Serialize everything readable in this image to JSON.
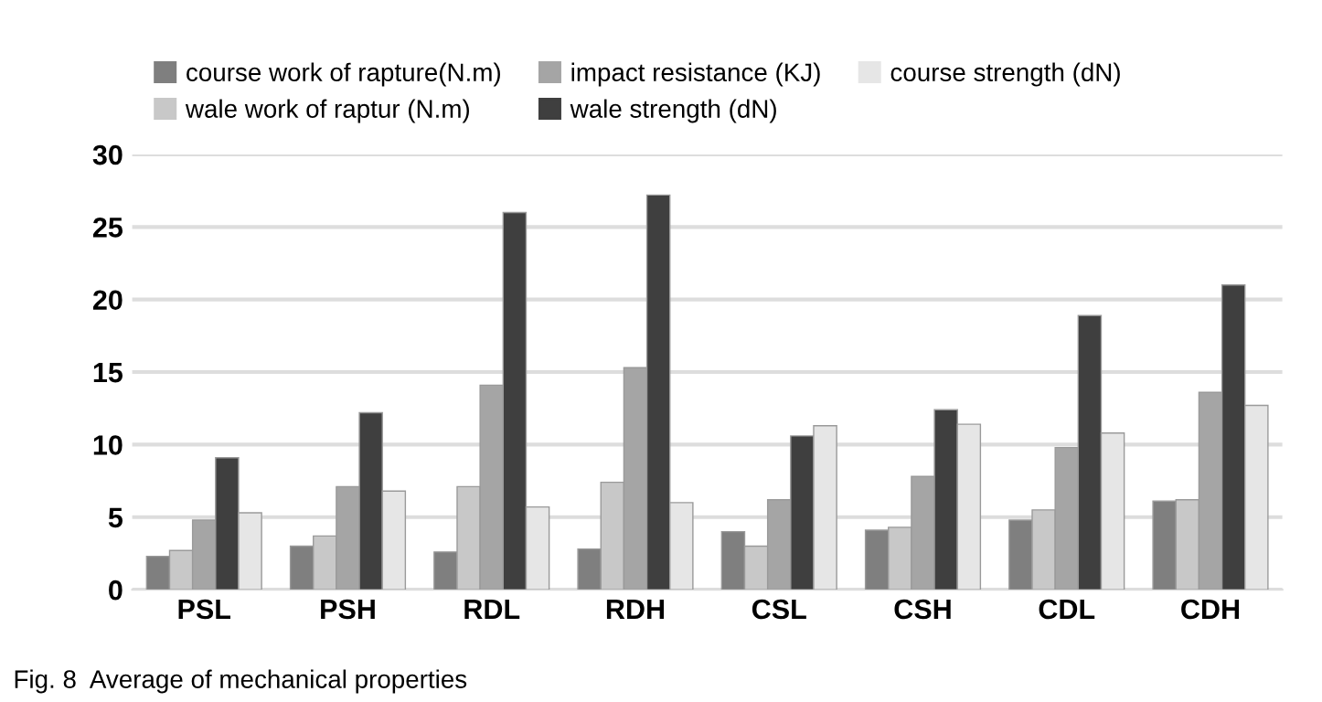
{
  "chart_data": {
    "type": "bar",
    "categories": [
      "PSL",
      "PSH",
      "RDL",
      "RDH",
      "CSL",
      "CSH",
      "CDL",
      "CDH"
    ],
    "series": [
      {
        "name": "course work of rapture(N.m)",
        "color": "#7f7f7f",
        "values": [
          2.3,
          3.0,
          2.6,
          2.8,
          4.0,
          4.1,
          4.8,
          6.1
        ]
      },
      {
        "name": "wale work of raptur (N.m)",
        "color": "#c8c8c8",
        "values": [
          2.7,
          3.7,
          7.1,
          7.4,
          3.0,
          4.3,
          5.5,
          6.2
        ]
      },
      {
        "name": "impact resistance (KJ)",
        "color": "#a5a5a5",
        "values": [
          4.8,
          7.1,
          14.1,
          15.3,
          6.2,
          7.8,
          9.8,
          13.6
        ]
      },
      {
        "name": "wale strength (dN)",
        "color": "#3f3f3f",
        "values": [
          9.1,
          12.2,
          26.0,
          27.2,
          10.6,
          12.4,
          18.9,
          21.0
        ]
      },
      {
        "name": "course strength (dN)",
        "color": "#e6e6e6",
        "values": [
          5.3,
          6.8,
          5.7,
          6.0,
          11.3,
          11.4,
          10.8,
          12.7
        ]
      }
    ],
    "ylim": [
      0,
      30
    ],
    "yticks": [
      0,
      5,
      10,
      15,
      20,
      25,
      30
    ],
    "grid": "y",
    "legend": "top",
    "annotations": [
      "Fig. 8  Average of mechanical properties"
    ]
  }
}
